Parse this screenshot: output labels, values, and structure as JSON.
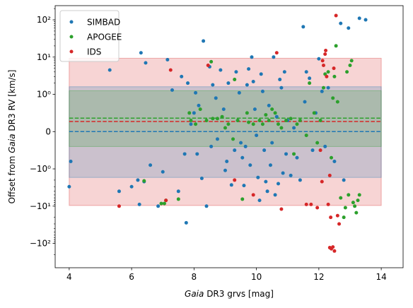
{
  "chart_data": {
    "type": "scatter",
    "xlabel_italic": "Gaia",
    "xlabel_rest": " DR3 grvs [mag]",
    "ylabel_pre": "Offset from ",
    "ylabel_italic": "Gaia",
    "ylabel_post": " DR3 RV [km/s]",
    "xlim": [
      3.55,
      14.7
    ],
    "x_ticks": [
      4,
      6,
      8,
      10,
      12,
      14
    ],
    "y_scale": "symlog",
    "y_linthresh": 1,
    "ylim": [
      -450,
      240
    ],
    "y_ticks": [
      {
        "value": 100,
        "label": "10²"
      },
      {
        "value": 10,
        "label": "10¹"
      },
      {
        "value": 1,
        "label": "10⁰"
      },
      {
        "value": 0,
        "label": "0"
      },
      {
        "value": -1,
        "label": "−10⁰"
      },
      {
        "value": -10,
        "label": "−10¹"
      },
      {
        "value": -100,
        "label": "−10²"
      }
    ],
    "legend": {
      "placement": "upper-left"
    },
    "bands": [
      {
        "name": "IDS",
        "x": [
          4,
          14
        ],
        "y": [
          -9.6,
          9.3
        ],
        "color": "#d62728",
        "opacity": 0.2
      },
      {
        "name": "SIMBAD",
        "x": [
          4,
          14
        ],
        "y": [
          -1.7,
          1.6
        ],
        "color": "#1f77b4",
        "opacity": 0.2
      },
      {
        "name": "APOGEE",
        "x": [
          4,
          14
        ],
        "y": [
          -0.4,
          1.25
        ],
        "color": "#2ca02c",
        "opacity": 0.2
      }
    ],
    "hlines": [
      {
        "y": 0,
        "color": "#1f77b4"
      },
      {
        "y": 0.27,
        "color": "#d62728"
      },
      {
        "y": 0.36,
        "color": "#2ca02c"
      }
    ],
    "series": [
      {
        "name": "SIMBAD",
        "color": "#1f77b4",
        "points": [
          [
            4.0,
            -3
          ],
          [
            4.05,
            -0.8
          ],
          [
            5.3,
            4.5
          ],
          [
            5.6,
            -4
          ],
          [
            6.0,
            -3
          ],
          [
            6.2,
            -2
          ],
          [
            6.3,
            13
          ],
          [
            6.4,
            -2.2
          ],
          [
            6.45,
            7
          ],
          [
            6.6,
            -0.9
          ],
          [
            6.85,
            -10
          ],
          [
            6.25,
            -9
          ],
          [
            7.0,
            -1.2
          ],
          [
            7.15,
            8.5
          ],
          [
            7.3,
            1.3
          ],
          [
            7.5,
            -4
          ],
          [
            7.6,
            3
          ],
          [
            7.7,
            -0.6
          ],
          [
            7.75,
            -28
          ],
          [
            7.8,
            2
          ],
          [
            7.9,
            0.2
          ],
          [
            8.0,
            0.5
          ],
          [
            8.05,
            1.1
          ],
          [
            8.1,
            -0.6
          ],
          [
            8.15,
            0.7
          ],
          [
            8.25,
            -1.8
          ],
          [
            8.3,
            27
          ],
          [
            8.4,
            -10
          ],
          [
            8.5,
            5.5
          ],
          [
            8.55,
            -0.4
          ],
          [
            8.6,
            1.8
          ],
          [
            8.7,
            0.9
          ],
          [
            8.75,
            -0.2
          ],
          [
            8.85,
            4.5
          ],
          [
            8.95,
            0.6
          ],
          [
            9.0,
            -1.1
          ],
          [
            9.05,
            -0.8
          ],
          [
            9.1,
            2
          ],
          [
            9.2,
            -2.7
          ],
          [
            9.3,
            -0.5
          ],
          [
            9.35,
            4
          ],
          [
            9.4,
            0.3
          ],
          [
            9.45,
            1.1
          ],
          [
            9.5,
            -0.3
          ],
          [
            9.55,
            -0.7
          ],
          [
            9.6,
            -2.8
          ],
          [
            9.65,
            -0.4
          ],
          [
            9.7,
            1.8
          ],
          [
            9.75,
            4.8
          ],
          [
            9.8,
            -0.9
          ],
          [
            9.85,
            10
          ],
          [
            9.9,
            2.2
          ],
          [
            9.95,
            0.6
          ],
          [
            10.0,
            -0.1
          ],
          [
            10.05,
            -1.7
          ],
          [
            10.1,
            -7
          ],
          [
            10.15,
            3.5
          ],
          [
            10.2,
            1.2
          ],
          [
            10.25,
            -0.5
          ],
          [
            10.3,
            -2.2
          ],
          [
            10.35,
            -4
          ],
          [
            10.4,
            0.7
          ],
          [
            10.45,
            -0.9
          ],
          [
            10.5,
            -0.3
          ],
          [
            10.55,
            10
          ],
          [
            10.6,
            -5
          ],
          [
            10.65,
            0.4
          ],
          [
            10.7,
            -2.5
          ],
          [
            10.75,
            2.5
          ],
          [
            10.8,
            1.5
          ],
          [
            10.85,
            -1.3
          ],
          [
            10.9,
            4
          ],
          [
            10.95,
            -0.6
          ],
          [
            11.0,
            0.3
          ],
          [
            11.1,
            -1.5
          ],
          [
            11.2,
            0.1
          ],
          [
            11.3,
            -0.7
          ],
          [
            11.4,
            -2.0
          ],
          [
            11.5,
            65
          ],
          [
            11.55,
            0.8
          ],
          [
            11.6,
            4
          ],
          [
            11.7,
            2.7
          ],
          [
            11.8,
            -0.5
          ],
          [
            11.9,
            0.5
          ],
          [
            12.0,
            9
          ],
          [
            12.1,
            1.2
          ],
          [
            12.2,
            -0.4
          ],
          [
            12.3,
            1.5
          ],
          [
            12.5,
            -0.8
          ],
          [
            12.7,
            80
          ],
          [
            12.8,
            -2
          ],
          [
            12.95,
            60
          ],
          [
            13.3,
            110
          ],
          [
            13.5,
            100
          ]
        ]
      },
      {
        "name": "APOGEE",
        "color": "#2ca02c",
        "points": [
          [
            6.4,
            -2.1
          ],
          [
            6.95,
            -8.5
          ],
          [
            7.05,
            -8.5
          ],
          [
            7.1,
            -7
          ],
          [
            7.5,
            -6.5
          ],
          [
            7.85,
            0.5
          ],
          [
            7.9,
            0.3
          ],
          [
            8.05,
            0.2
          ],
          [
            8.2,
            0.6
          ],
          [
            8.4,
            0.3
          ],
          [
            8.55,
            7.5
          ],
          [
            8.6,
            0.35
          ],
          [
            8.75,
            0.35
          ],
          [
            8.9,
            0.4
          ],
          [
            9.0,
            0.1
          ],
          [
            9.1,
            0.2
          ],
          [
            9.25,
            -0.2
          ],
          [
            9.3,
            2.5
          ],
          [
            9.4,
            0.3
          ],
          [
            9.55,
            -6.5
          ],
          [
            9.7,
            0.5
          ],
          [
            9.75,
            0.25
          ],
          [
            9.9,
            0.2
          ],
          [
            10.1,
            0.3
          ],
          [
            10.2,
            0.2
          ],
          [
            10.3,
            0.45
          ],
          [
            10.4,
            0.3
          ],
          [
            10.5,
            0.6
          ],
          [
            10.6,
            0.5
          ],
          [
            10.7,
            0.2
          ],
          [
            10.8,
            0.1
          ],
          [
            10.95,
            0.3
          ],
          [
            11.1,
            0.35
          ],
          [
            11.2,
            -0.6
          ],
          [
            11.3,
            0.2
          ],
          [
            11.4,
            0.3
          ],
          [
            11.6,
            -0.1
          ],
          [
            11.7,
            2.0
          ],
          [
            11.85,
            0.5
          ],
          [
            11.95,
            -0.3
          ],
          [
            12.05,
            0.3
          ],
          [
            12.15,
            1.5
          ],
          [
            12.2,
            3.5
          ],
          [
            12.3,
            4
          ],
          [
            12.4,
            -0.7
          ],
          [
            12.45,
            0.9
          ],
          [
            12.5,
            3
          ],
          [
            12.55,
            20
          ],
          [
            12.6,
            0.8
          ],
          [
            12.7,
            -6
          ],
          [
            12.8,
            -20
          ],
          [
            12.85,
            -11
          ],
          [
            12.9,
            4
          ],
          [
            12.95,
            -5
          ],
          [
            13.0,
            6
          ],
          [
            13.05,
            8
          ],
          [
            13.1,
            -8
          ],
          [
            13.15,
            -10
          ],
          [
            13.2,
            -15
          ],
          [
            13.25,
            -7
          ],
          [
            13.3,
            -5
          ]
        ]
      },
      {
        "name": "IDS",
        "color": "#d62728",
        "points": [
          [
            5.6,
            -10
          ],
          [
            7.1,
            -7
          ],
          [
            7.25,
            4.5
          ],
          [
            8.45,
            6
          ],
          [
            9.3,
            -2
          ],
          [
            9.9,
            -5
          ],
          [
            10.65,
            13
          ],
          [
            10.8,
            -12
          ],
          [
            11.6,
            -9
          ],
          [
            11.75,
            -9
          ],
          [
            11.95,
            -11
          ],
          [
            12.05,
            -0.5
          ],
          [
            12.1,
            -2.2
          ],
          [
            12.12,
            8
          ],
          [
            12.15,
            6
          ],
          [
            12.2,
            12
          ],
          [
            12.22,
            15
          ],
          [
            12.25,
            3
          ],
          [
            12.3,
            -9
          ],
          [
            12.35,
            -1.5
          ],
          [
            12.38,
            -20
          ],
          [
            12.4,
            -140
          ],
          [
            12.45,
            -125
          ],
          [
            12.35,
            -130
          ],
          [
            12.48,
            5
          ],
          [
            12.5,
            -160
          ],
          [
            12.55,
            130
          ],
          [
            12.6,
            -18
          ],
          [
            12.65,
            -30
          ]
        ]
      }
    ]
  }
}
